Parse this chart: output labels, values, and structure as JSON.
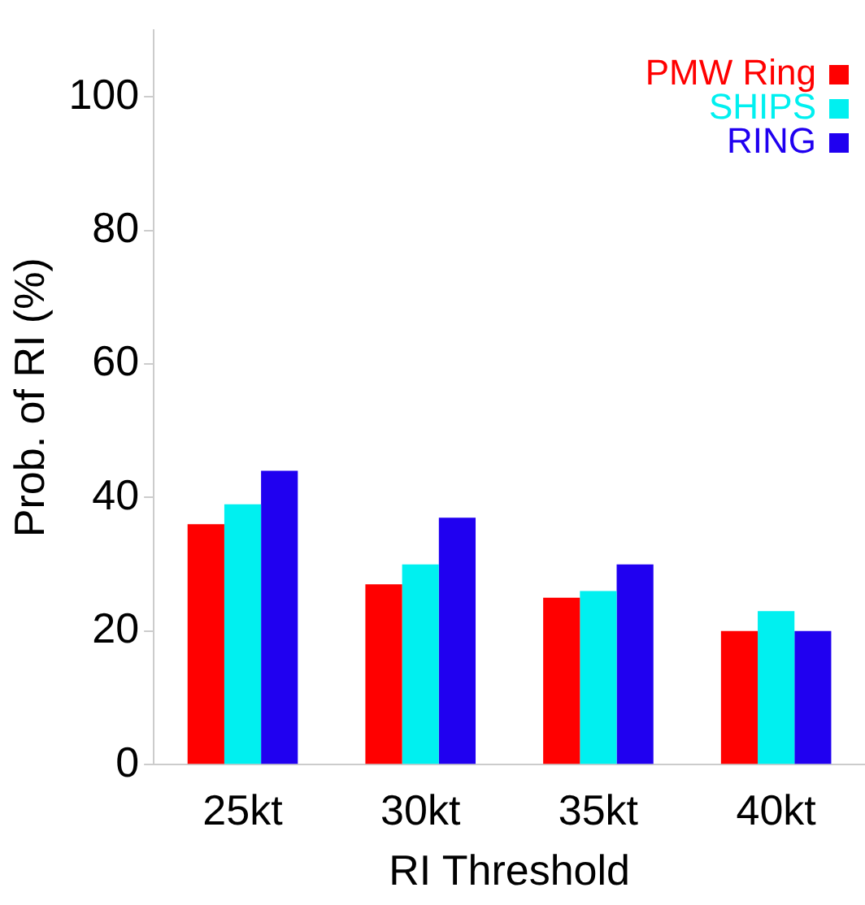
{
  "chart_data": {
    "type": "bar",
    "xlabel": "RI Threshold",
    "ylabel": "Prob. of RI (%)",
    "categories": [
      "25kt",
      "30kt",
      "35kt",
      "40kt"
    ],
    "series": [
      {
        "name": "PMW Ring",
        "color": "#ff0000",
        "values": [
          36,
          27,
          25,
          20
        ]
      },
      {
        "name": "SHIPS",
        "color": "#00f0f0",
        "values": [
          39,
          30,
          26,
          23
        ]
      },
      {
        "name": "RING",
        "color": "#2000f0",
        "values": [
          44,
          37,
          30,
          20
        ]
      }
    ],
    "ylim": [
      0,
      110
    ],
    "yticks": [
      0,
      20,
      40,
      60,
      80,
      100
    ],
    "grid": false,
    "legend": "top right"
  }
}
